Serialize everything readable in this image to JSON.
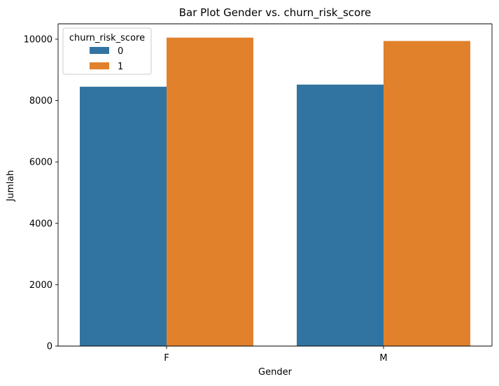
{
  "chart_data": {
    "type": "bar",
    "title": "Bar Plot Gender vs. churn_risk_score",
    "xlabel": "Gender",
    "ylabel": "Jumlah",
    "categories": [
      "F",
      "M"
    ],
    "series": [
      {
        "name": "0",
        "values": [
          8450,
          8520
        ],
        "color": "#3274a1"
      },
      {
        "name": "1",
        "values": [
          10050,
          9940
        ],
        "color": "#e1812c"
      }
    ],
    "ylim": [
      0,
      10500
    ],
    "yticks": [
      0,
      2000,
      4000,
      6000,
      8000,
      10000
    ],
    "legend": {
      "title": "churn_risk_score",
      "placement": "top-left"
    },
    "grid": false
  }
}
